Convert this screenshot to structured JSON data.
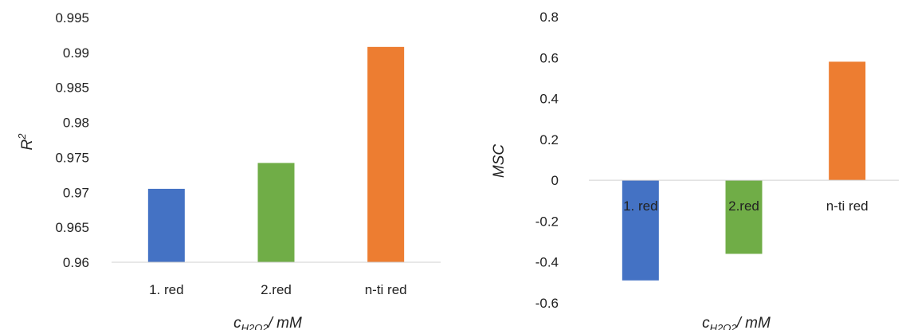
{
  "chart_data": [
    {
      "type": "bar",
      "categories": [
        "1. red",
        "2.red",
        "n-ti red"
      ],
      "values": [
        0.9705,
        0.9742,
        0.9908
      ],
      "colors": [
        "#4472c4",
        "#70ad47",
        "#ed7d31"
      ],
      "ylim": [
        0.96,
        0.995
      ],
      "yticks": [
        "0.995",
        "0.99",
        "0.985",
        "0.98",
        "0.975",
        "0.97",
        "0.965",
        "0.96"
      ],
      "ylabel": {
        "main": "R",
        "sup": "2"
      },
      "xlabel": {
        "main": "c",
        "sub": "H2O2",
        "rest": "/ mM"
      },
      "grid": false
    },
    {
      "type": "bar",
      "categories": [
        "1. red",
        "2.red",
        "n-ti red"
      ],
      "values": [
        -0.49,
        -0.36,
        0.58
      ],
      "colors": [
        "#4472c4",
        "#70ad47",
        "#ed7d31"
      ],
      "ylim": [
        -0.6,
        0.8
      ],
      "yticks": [
        "0.8",
        "0.6",
        "0.4",
        "0.2",
        "0",
        "-0.2",
        "-0.4",
        "-0.6"
      ],
      "ylabel": {
        "main": "MSC"
      },
      "xlabel": {
        "main": "c",
        "sub": "H2O2",
        "rest": "/ mM"
      },
      "grid": false
    }
  ]
}
